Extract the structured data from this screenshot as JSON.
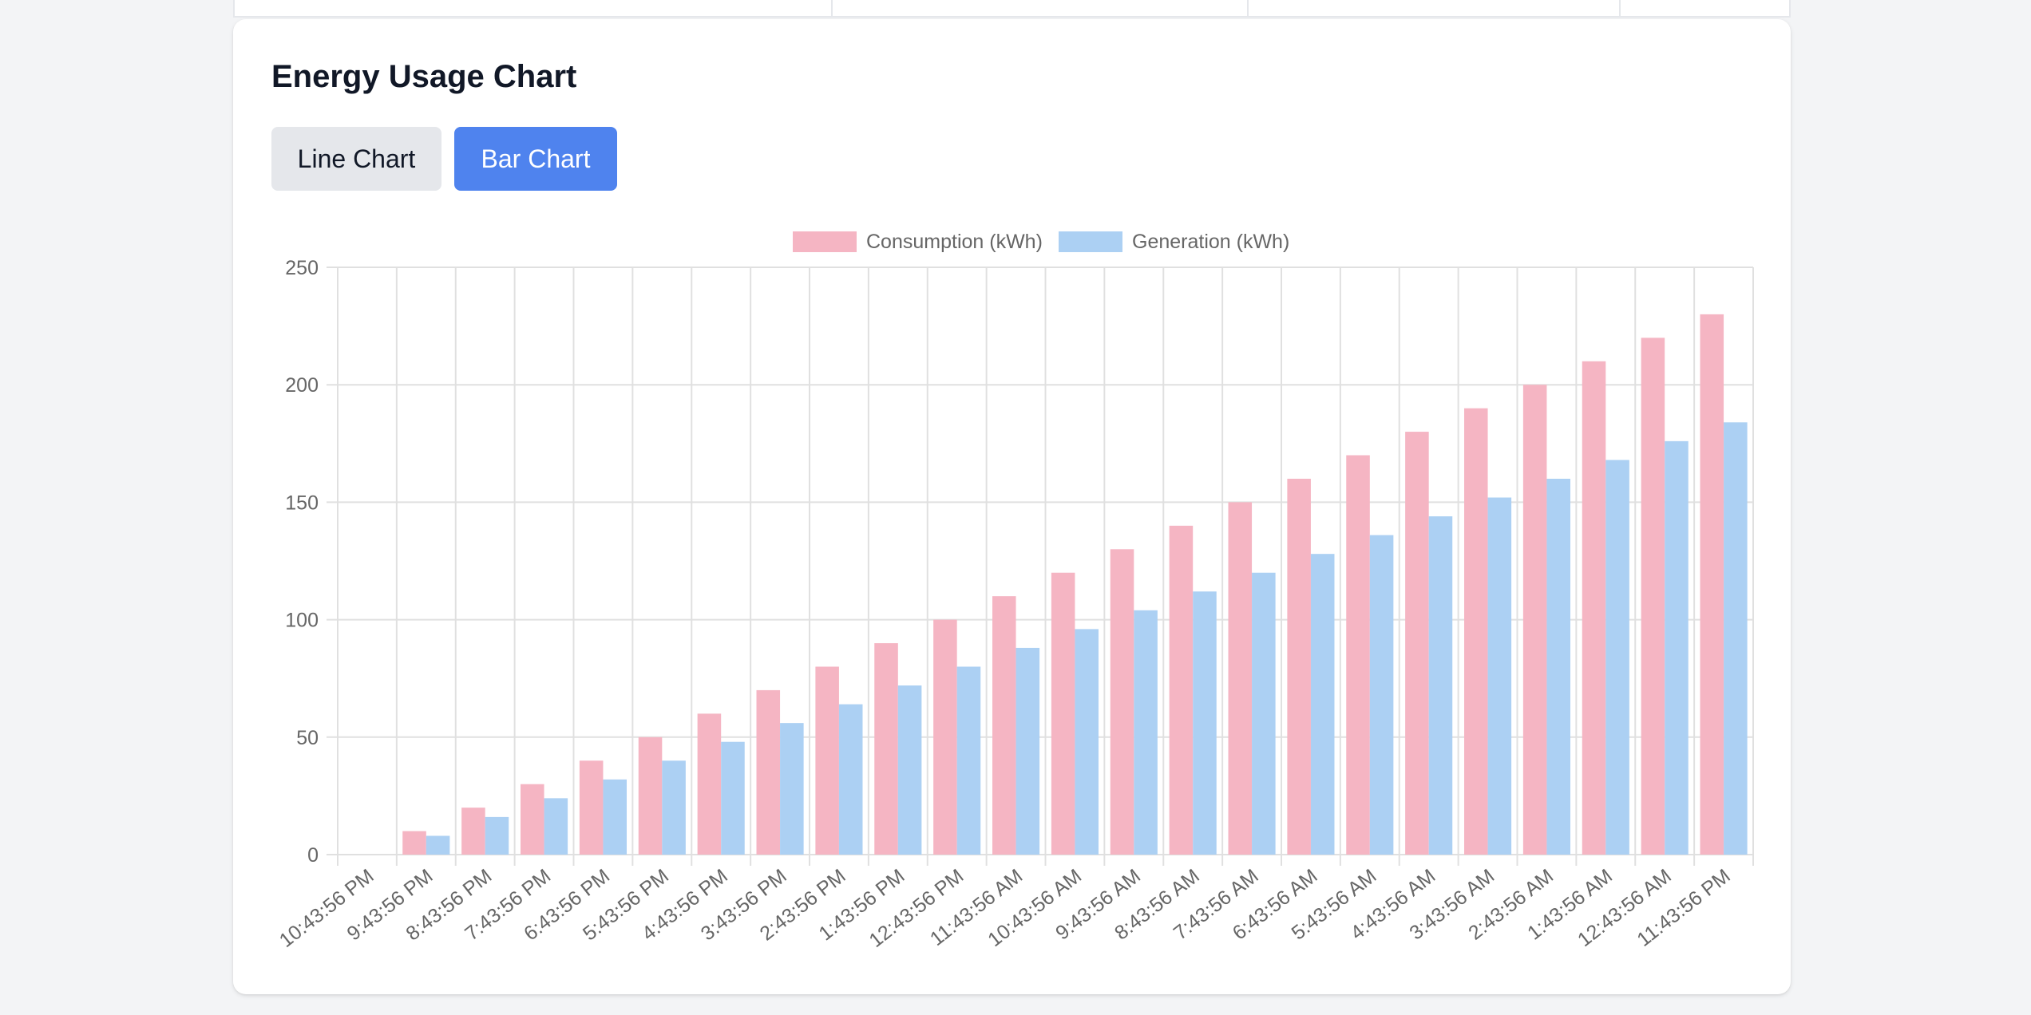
{
  "card": {
    "title": "Energy Usage Chart",
    "buttons": {
      "line_label": "Line Chart",
      "bar_label": "Bar Chart",
      "active": "Bar Chart"
    }
  },
  "colors": {
    "consumption": "#f5b5c3",
    "generation": "#acd0f3",
    "active_button": "#4f83ee"
  },
  "chart_data": {
    "type": "bar",
    "title": "",
    "xlabel": "",
    "ylabel": "",
    "ylim": [
      0,
      250
    ],
    "yticks": [
      0,
      50,
      100,
      150,
      200,
      250
    ],
    "grid": true,
    "legend_position": "top-center",
    "categories": [
      "10:43:56 PM",
      "9:43:56 PM",
      "8:43:56 PM",
      "7:43:56 PM",
      "6:43:56 PM",
      "5:43:56 PM",
      "4:43:56 PM",
      "3:43:56 PM",
      "2:43:56 PM",
      "1:43:56 PM",
      "12:43:56 PM",
      "11:43:56 AM",
      "10:43:56 AM",
      "9:43:56 AM",
      "8:43:56 AM",
      "7:43:56 AM",
      "6:43:56 AM",
      "5:43:56 AM",
      "4:43:56 AM",
      "3:43:56 AM",
      "2:43:56 AM",
      "1:43:56 AM",
      "12:43:56 AM",
      "11:43:56 PM"
    ],
    "series": [
      {
        "name": "Consumption (kWh)",
        "values": [
          0,
          10,
          20,
          30,
          40,
          50,
          60,
          70,
          80,
          90,
          100,
          110,
          120,
          130,
          140,
          150,
          160,
          170,
          180,
          190,
          200,
          210,
          220,
          230
        ]
      },
      {
        "name": "Generation (kWh)",
        "values": [
          0,
          8,
          16,
          24,
          32,
          40,
          48,
          56,
          64,
          72,
          80,
          88,
          96,
          104,
          112,
          120,
          128,
          136,
          144,
          152,
          160,
          168,
          176,
          184
        ]
      }
    ]
  }
}
